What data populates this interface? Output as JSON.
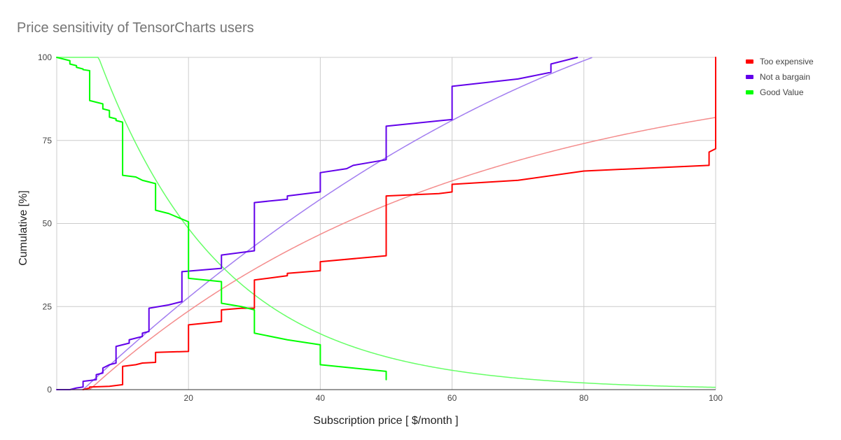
{
  "chart_data": {
    "type": "line",
    "title": "Price sensitivity of TensorCharts users",
    "xlabel": "Subscription price [ $/month ]",
    "ylabel": "Cumulative [%]",
    "xlim": [
      0,
      100
    ],
    "ylim": [
      0,
      100
    ],
    "x_ticks": [
      20,
      40,
      60,
      80,
      100
    ],
    "y_ticks": [
      0,
      25,
      50,
      75,
      100
    ],
    "grid": true,
    "legend_position": "right",
    "series": [
      {
        "name": "Too expensive",
        "color": "#ff0000",
        "trend_color": "#f48c8c",
        "steps": [
          [
            4,
            0
          ],
          [
            5,
            0.5
          ],
          [
            5,
            0.8
          ],
          [
            8,
            1
          ],
          [
            10,
            1.5
          ],
          [
            10,
            7
          ],
          [
            12,
            7.5
          ],
          [
            13,
            8
          ],
          [
            15,
            8.2
          ],
          [
            15,
            11.2
          ],
          [
            20,
            11.5
          ],
          [
            20,
            19.5
          ],
          [
            25,
            20.5
          ],
          [
            25,
            24
          ],
          [
            28,
            24.5
          ],
          [
            30,
            24.5
          ],
          [
            30,
            33
          ],
          [
            32,
            33.5
          ],
          [
            35,
            34.3
          ],
          [
            35,
            35
          ],
          [
            40,
            35.8
          ],
          [
            40,
            38.5
          ],
          [
            50,
            40.3
          ],
          [
            50,
            58.3
          ],
          [
            58,
            59
          ],
          [
            60,
            59.5
          ],
          [
            60,
            61.8
          ],
          [
            70,
            63
          ],
          [
            80,
            65.8
          ],
          [
            99,
            67.5
          ],
          [
            99,
            71.5
          ],
          [
            100,
            72.5
          ],
          [
            100,
            100
          ]
        ],
        "trend": {
          "k": 0.018,
          "x0": 5
        }
      },
      {
        "name": "Not a bargain",
        "color": "#6200ea",
        "trend_color": "#a27df0",
        "steps": [
          [
            0,
            0
          ],
          [
            2,
            0
          ],
          [
            3,
            0.5
          ],
          [
            4,
            0.8
          ],
          [
            4,
            2.5
          ],
          [
            6,
            3
          ],
          [
            6,
            4.5
          ],
          [
            7,
            5
          ],
          [
            7,
            6.5
          ],
          [
            8,
            7.5
          ],
          [
            9,
            8
          ],
          [
            9,
            13
          ],
          [
            10,
            13.5
          ],
          [
            11,
            14
          ],
          [
            11,
            15
          ],
          [
            12,
            15.5
          ],
          [
            13,
            16
          ],
          [
            13,
            17
          ],
          [
            14,
            17.5
          ],
          [
            14,
            24.5
          ],
          [
            17,
            25.5
          ],
          [
            19,
            26.5
          ],
          [
            19,
            35.5
          ],
          [
            25,
            36.5
          ],
          [
            25,
            40.5
          ],
          [
            30,
            41.8
          ],
          [
            30,
            56.3
          ],
          [
            35,
            57.3
          ],
          [
            35,
            58.3
          ],
          [
            40,
            59.5
          ],
          [
            40,
            65.3
          ],
          [
            44,
            66.5
          ],
          [
            45,
            67.5
          ],
          [
            50,
            69.2
          ],
          [
            50,
            79.3
          ],
          [
            60,
            81.3
          ],
          [
            60,
            91.3
          ],
          [
            70,
            93.5
          ],
          [
            75,
            95.5
          ],
          [
            75,
            98
          ],
          [
            79,
            100
          ]
        ],
        "trend": {
          "a": 1.85,
          "b": -0.0072,
          "x0": 4
        }
      },
      {
        "name": "Good Value",
        "color": "#00ff00",
        "trend_color": "#66ff66",
        "steps": [
          [
            0,
            100
          ],
          [
            1,
            99.5
          ],
          [
            2,
            99
          ],
          [
            2,
            98
          ],
          [
            3,
            97.5
          ],
          [
            3,
            97
          ],
          [
            4,
            96.5
          ],
          [
            4,
            96.3
          ],
          [
            5,
            96
          ],
          [
            5,
            87
          ],
          [
            7,
            86
          ],
          [
            7,
            84.5
          ],
          [
            8,
            84
          ],
          [
            8,
            82
          ],
          [
            9,
            81.5
          ],
          [
            9,
            81
          ],
          [
            10,
            80.5
          ],
          [
            10,
            64.5
          ],
          [
            12,
            64
          ],
          [
            13,
            63
          ],
          [
            15,
            62
          ],
          [
            15,
            54
          ],
          [
            17,
            53
          ],
          [
            20,
            50.5
          ],
          [
            20,
            33.5
          ],
          [
            25,
            32.5
          ],
          [
            25,
            26
          ],
          [
            28,
            25
          ],
          [
            30,
            24
          ],
          [
            30,
            17
          ],
          [
            35,
            15
          ],
          [
            40,
            13.5
          ],
          [
            40,
            7.5
          ],
          [
            45,
            6.5
          ],
          [
            50,
            5.5
          ],
          [
            50,
            3
          ]
        ],
        "trend": {
          "a": 140,
          "k": 0.053
        }
      }
    ]
  }
}
